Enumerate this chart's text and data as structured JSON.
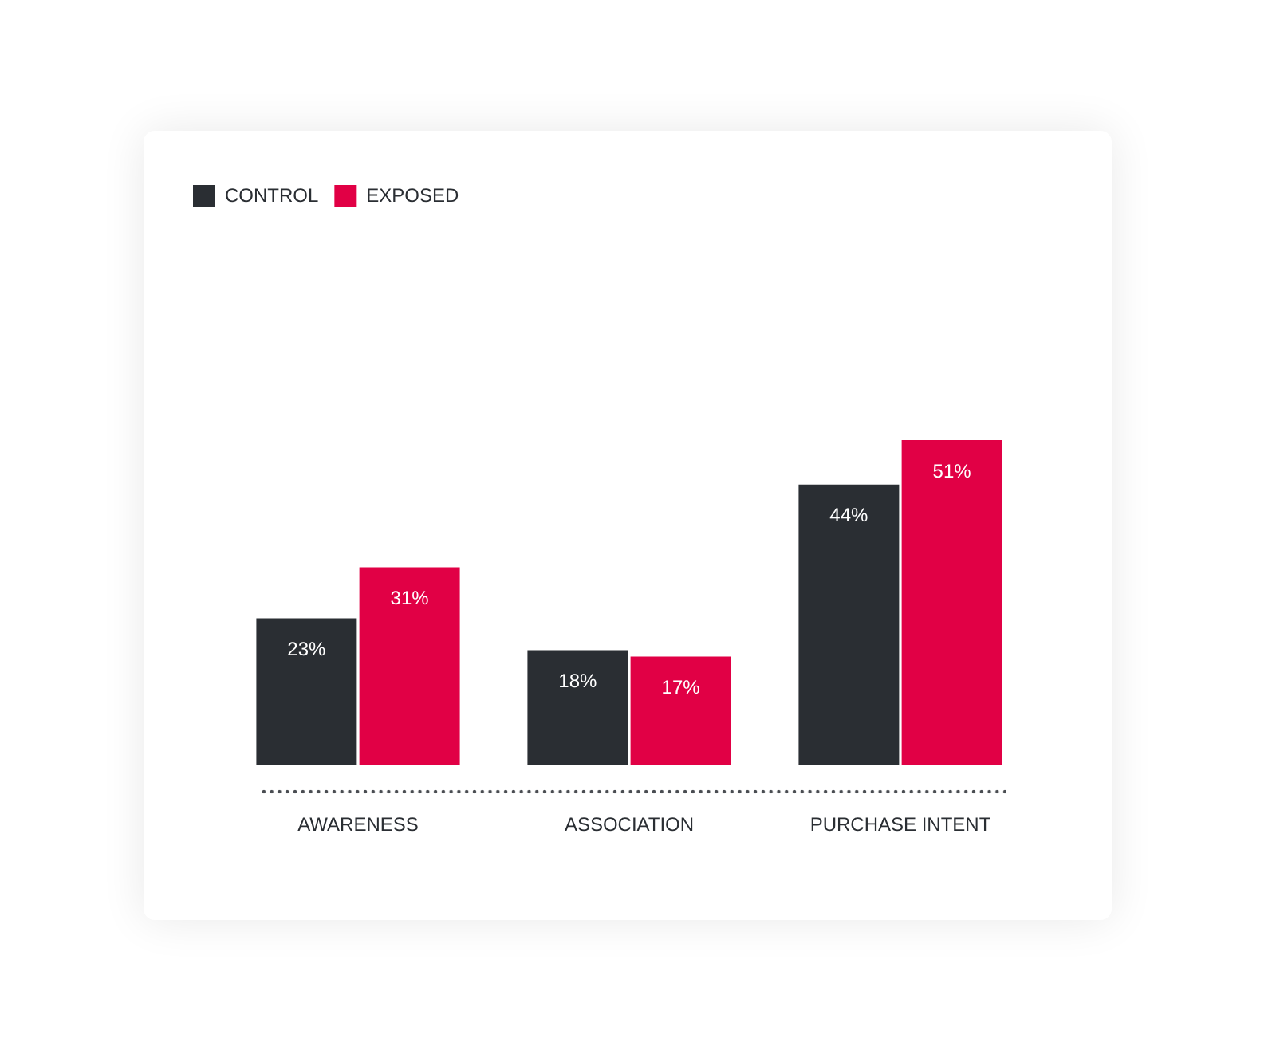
{
  "chart_data": {
    "type": "bar",
    "categories": [
      "AWARENESS",
      "ASSOCIATION",
      "PURCHASE INTENT"
    ],
    "series": [
      {
        "name": "CONTROL",
        "color": "#2a2e33",
        "values": [
          23,
          18,
          44
        ],
        "value_labels": [
          "23%",
          "18%",
          "44%"
        ]
      },
      {
        "name": "EXPOSED",
        "color": "#e10045",
        "values": [
          31,
          17,
          51
        ],
        "value_labels": [
          "31%",
          "17%",
          "51%"
        ]
      }
    ],
    "legend": "top left",
    "tick_labels": "x"
  }
}
